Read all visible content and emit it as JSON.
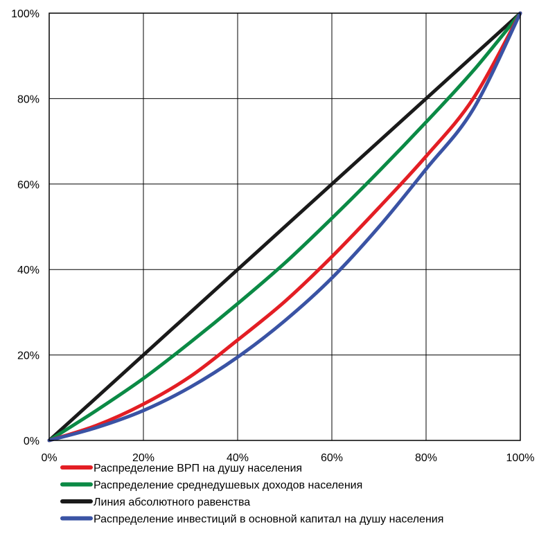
{
  "chart_data": {
    "type": "line",
    "title": "",
    "xlabel": "",
    "ylabel": "",
    "xlim": [
      0,
      100
    ],
    "ylim": [
      0,
      100
    ],
    "grid": true,
    "legend_position": "bottom",
    "x_ticks": [
      "0%",
      "20%",
      "40%",
      "60%",
      "80%",
      "100%"
    ],
    "y_ticks": [
      "0%",
      "20%",
      "40%",
      "60%",
      "80%",
      "100%"
    ],
    "series": [
      {
        "name": "Распределение ВРП на душу населения",
        "color": "#e31e24",
        "x": [
          0,
          10,
          20,
          30,
          40,
          50,
          60,
          70,
          80,
          90,
          100
        ],
        "y": [
          0,
          3.5,
          8.5,
          15,
          23.5,
          32.5,
          43,
          54.5,
          66.5,
          80,
          100
        ]
      },
      {
        "name": "Распределение среднедушевых доходов населения",
        "color": "#0b8a45",
        "x": [
          0,
          10,
          20,
          30,
          40,
          50,
          60,
          70,
          80,
          90,
          100
        ],
        "y": [
          0,
          7,
          14.5,
          23,
          32,
          41.5,
          52,
          63,
          74.5,
          86.5,
          100
        ]
      },
      {
        "name": "Линия абсолютного равенства",
        "color": "#1a1a1a",
        "x": [
          0,
          100
        ],
        "y": [
          0,
          100
        ]
      },
      {
        "name": "Распределение инвестиций в основной капитал на душу населения",
        "color": "#3a53a4",
        "x": [
          0,
          10,
          20,
          30,
          40,
          50,
          60,
          70,
          80,
          90,
          100
        ],
        "y": [
          0,
          3,
          7,
          12.5,
          19.5,
          28,
          38,
          50,
          63.5,
          77.5,
          100
        ]
      }
    ]
  }
}
